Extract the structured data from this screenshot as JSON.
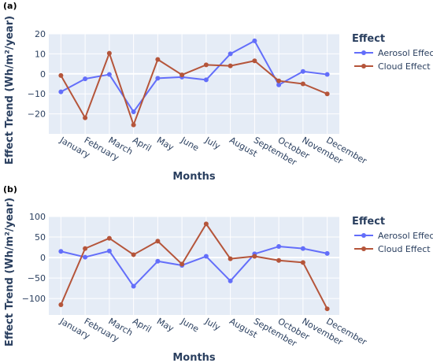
{
  "colors": {
    "aerosol": "#636efa",
    "cloud": "#b5553a",
    "grid": "#ffffff",
    "plot_bg": "#e5ecf6",
    "zero": "#ffffff"
  },
  "chart_data": [
    {
      "panel": "(a)",
      "type": "line",
      "categories": [
        "January",
        "February",
        "March",
        "April",
        "May",
        "June",
        "July",
        "August",
        "September",
        "October",
        "November",
        "December"
      ],
      "series": [
        {
          "name": "Aerosol Effect",
          "values": [
            -9,
            -2.5,
            -0.3,
            -19,
            -2.2,
            -1.6,
            -3,
            10,
            16.5,
            -5.5,
            1.2,
            -0.3
          ]
        },
        {
          "name": "Cloud Effect",
          "values": [
            -0.8,
            -22,
            10.3,
            -25.5,
            7.2,
            -0.5,
            4.5,
            4,
            6.5,
            -3.5,
            -5,
            -10
          ]
        }
      ],
      "xlabel": "Months",
      "ylabel": "Effect Trend (Wh/m²/year)",
      "ylim": [
        -30,
        20
      ],
      "yticks": [
        20,
        10,
        0,
        -10,
        -20
      ],
      "legend_title": "Effect",
      "legend_position": "right"
    },
    {
      "panel": "(b)",
      "type": "line",
      "categories": [
        "January",
        "February",
        "March",
        "April",
        "May",
        "June",
        "July",
        "August",
        "September",
        "October",
        "November",
        "December"
      ],
      "series": [
        {
          "name": "Aerosol Effect",
          "values": [
            15,
            1,
            16,
            -70,
            -9,
            -19,
            3,
            -57,
            9,
            27,
            22,
            10
          ]
        },
        {
          "name": "Cloud Effect",
          "values": [
            -115,
            22,
            47,
            7,
            40,
            -16,
            82,
            -3,
            3,
            -7,
            -12,
            -125
          ]
        }
      ],
      "xlabel": "Months",
      "ylabel": "Effect Trend (Wh/m²/year)",
      "ylim": [
        -140,
        100
      ],
      "yticks": [
        100,
        50,
        0,
        -50,
        -100
      ],
      "legend_title": "Effect",
      "legend_position": "right"
    }
  ]
}
